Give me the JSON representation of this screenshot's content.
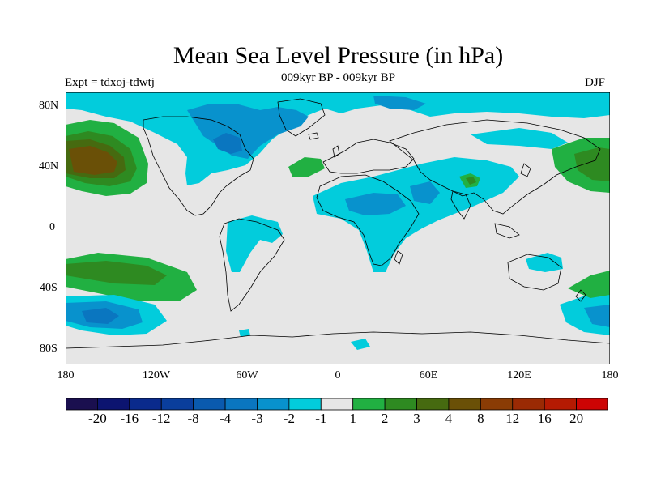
{
  "title": "Mean Sea Level Pressure (in hPa)",
  "subtitle": "009kyr BP - 009kyr BP",
  "experiment": "Expt = tdxoj-tdwtj",
  "season": "DJF",
  "axes": {
    "lat_ticks": [
      "80N",
      "40N",
      "0",
      "40S",
      "80S"
    ],
    "lon_ticks": [
      "180",
      "120W",
      "60W",
      "0",
      "60E",
      "120E",
      "180"
    ]
  },
  "legend": {
    "colors": [
      "#1a0f4f",
      "#0c1470",
      "#0a2a8c",
      "#0a3e9c",
      "#0a5aae",
      "#0a76c0",
      "#0892cd",
      "#02ccdc",
      "#e6e6e6",
      "#21b042",
      "#2e8a21",
      "#466a10",
      "#6a5007",
      "#8a3c05",
      "#9a2a04",
      "#b51a02",
      "#cd0404"
    ],
    "labels": [
      "-20",
      "-16",
      "-12",
      "-8",
      "-4",
      "-3",
      "-2",
      "-1",
      "1",
      "2",
      "3",
      "4",
      "8",
      "12",
      "16",
      "20"
    ]
  },
  "colors": {
    "land_outline": "#000000",
    "background": "#e6e6e6",
    "low_1": "#02ccdc",
    "low_2": "#0892cd",
    "low_3": "#0a76c0",
    "high_1": "#21b042",
    "high_2": "#2e8a21",
    "high_3": "#466a10",
    "high_4": "#6a5007"
  }
}
